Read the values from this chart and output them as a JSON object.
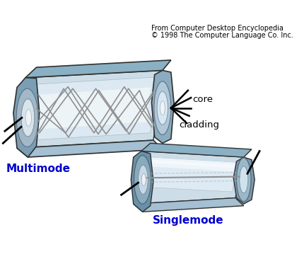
{
  "header_line1": "From Computer Desktop Encyclopedia",
  "header_line2": "© 1998 The Computer Language Co. Inc.",
  "label_multimode": "Multimode",
  "label_singlemode": "Singlemode",
  "label_core": "core",
  "label_cladding": "cladding",
  "label_color": "#0000CC",
  "bg_color": "#ffffff",
  "clad_top": "#9bbccc",
  "clad_side": "#b8d0de",
  "clad_bot": "#a8c4d4",
  "clad_face": "#7aa0b8",
  "core_body": "#d8e8f0",
  "core_light": "#eaf2f8",
  "core_highlight": "#f4f8fc",
  "gray_ray": "#888888",
  "dark_edge": "#303030",
  "text_color": "#000000"
}
